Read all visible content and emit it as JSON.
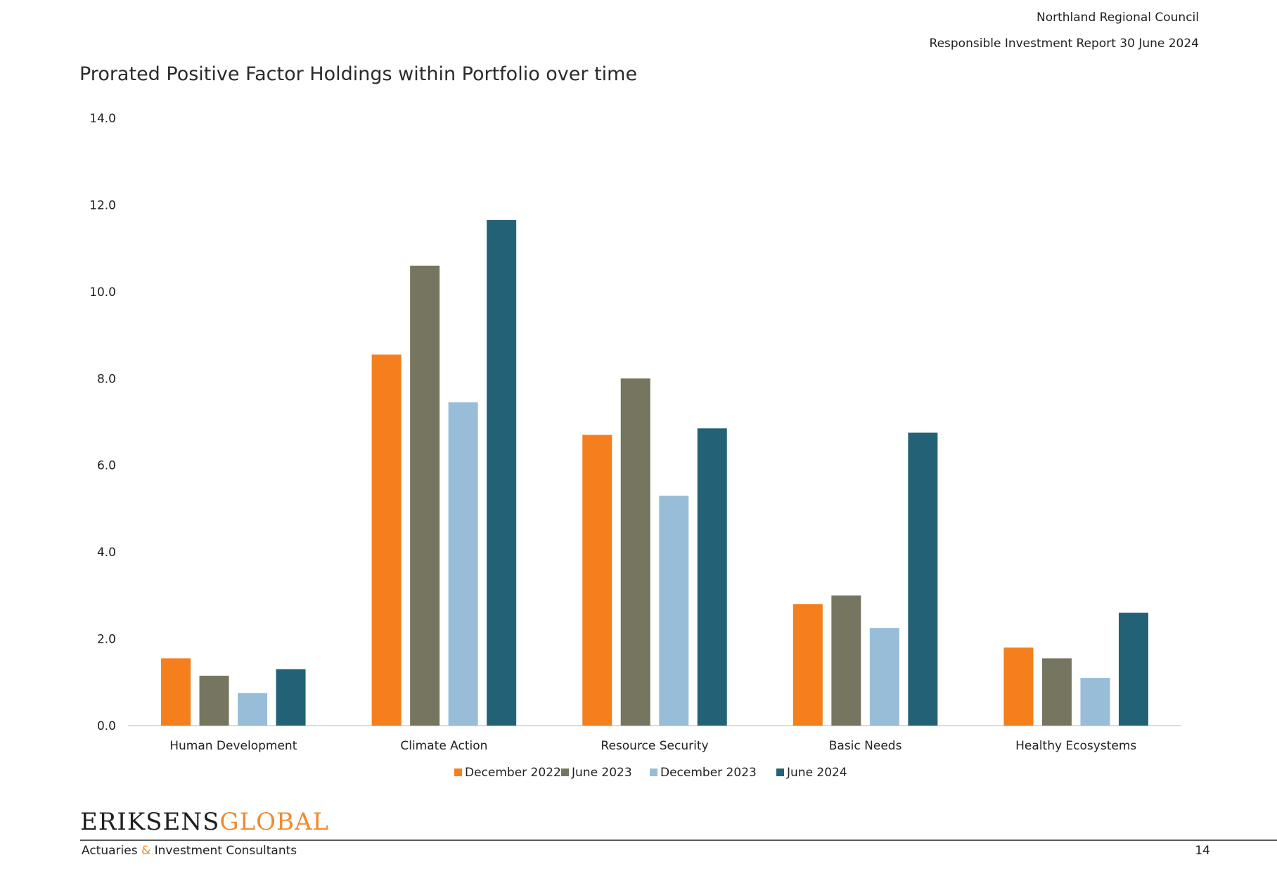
{
  "header": {
    "org": "Northland Regional Council",
    "report": "Responsible Investment Report 30 June 2024"
  },
  "footer": {
    "logo_part1": "ERIKSENS",
    "logo_part2": "GLOBAL",
    "tagline_part1": "Actuaries ",
    "tagline_amp": "&",
    "tagline_part2": " Investment Consultants",
    "page_number": "14"
  },
  "colors": {
    "series": [
      "#f47f1c",
      "#76755f",
      "#98bdd9",
      "#236276"
    ],
    "axis": "#d0d0d0",
    "brand_accent": "#f28a2e"
  },
  "chart_data": {
    "type": "bar",
    "title": "Prorated Positive Factor Holdings within Portfolio over time",
    "categories": [
      "Human Development",
      "Climate Action",
      "Resource Security",
      "Basic Needs",
      "Healthy Ecosystems"
    ],
    "series": [
      {
        "name": "December 2022",
        "values": [
          1.55,
          8.55,
          6.7,
          2.8,
          1.8
        ]
      },
      {
        "name": "June 2023",
        "values": [
          1.15,
          10.6,
          8.0,
          3.0,
          1.55
        ]
      },
      {
        "name": "December 2023",
        "values": [
          0.75,
          7.45,
          5.3,
          2.25,
          1.1
        ]
      },
      {
        "name": "June 2024",
        "values": [
          1.3,
          11.65,
          6.85,
          6.75,
          2.6
        ]
      }
    ],
    "ylim": [
      0,
      14
    ],
    "yticks": [
      "0.0",
      "2.0",
      "4.0",
      "6.0",
      "8.0",
      "10.0",
      "12.0",
      "14.0"
    ],
    "xlabel": "",
    "ylabel": "",
    "grid": false,
    "legend": "bottom-center"
  }
}
